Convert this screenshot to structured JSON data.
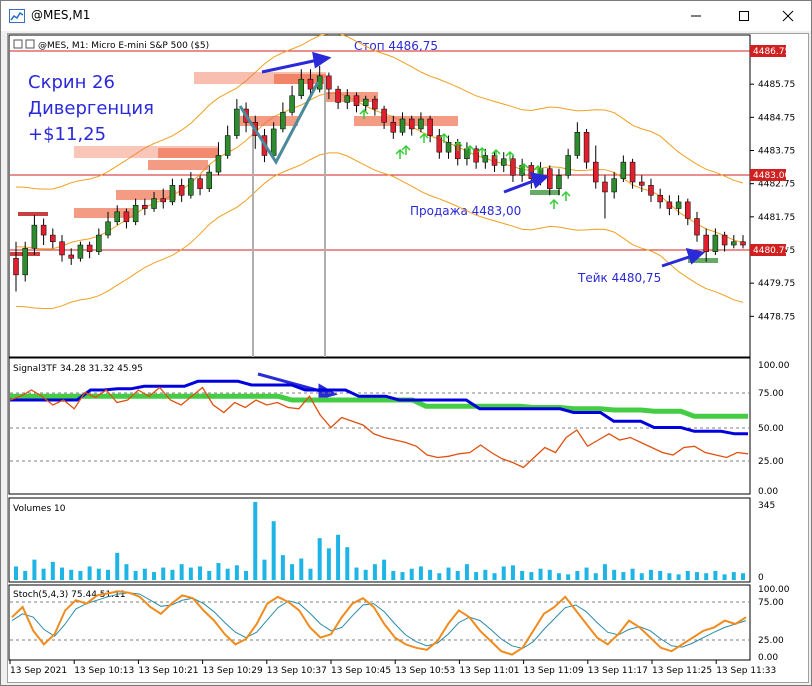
{
  "window": {
    "title": "@MES,M1",
    "minimize_icon": "minimize-icon",
    "maximize_icon": "maximize-icon",
    "close_icon": "close-icon"
  },
  "chart_header": {
    "symbol_label": "@MES, M1:  Micro E-mini S&P 500 ($5)"
  },
  "annotations": {
    "screen_title": "Скрин 26",
    "divergence": "Дивергенция",
    "profit": "+$11,25",
    "stop": "Стоп 4486,75",
    "sell": "Продажа 4483,00",
    "take": "Тейк 4480,75"
  },
  "price_scale": {
    "ticks": [
      "4485.75",
      "4484.75",
      "4483.75",
      "4482.75",
      "4481.75",
      "4480.75",
      "4479.75",
      "4478.75"
    ],
    "stop_tag": "4486.75",
    "sell_tag": "4483.00",
    "take_tag": "4480.75"
  },
  "signal_panel": {
    "label": "Signal3TF 34.28 31.32 45.95",
    "ticks": [
      "100.00",
      "75.00",
      "50.00",
      "25.00",
      "0.00"
    ]
  },
  "volume_panel": {
    "label": "Volumes 10",
    "ticks": [
      "345",
      "0"
    ]
  },
  "stoch_panel": {
    "label": "Stoch(5,4,3) 75.44 51.11",
    "ticks": [
      "100.00",
      "75.00",
      "25.00",
      "0.00"
    ]
  },
  "time_axis": {
    "labels": [
      "13 Sep 2021",
      "13 Sep 10:13",
      "13 Sep 10:21",
      "13 Sep 10:29",
      "13 Sep 10:37",
      "13 Sep 10:45",
      "13 Sep 10:53",
      "13 Sep 11:01",
      "13 Sep 11:09",
      "13 Sep 11:17",
      "13 Sep 11:25",
      "13 Sep 11:33"
    ]
  },
  "colors": {
    "bull": "#2e8b2e",
    "bear": "#e0202e",
    "band": "#f0a020",
    "level": "#d02020",
    "signal_blue": "#0000dd",
    "signal_green": "#44cc44",
    "signal_orange": "#e05010",
    "volume": "#1eb4e6",
    "stoch_orange": "#f08c1e",
    "stoch_teal": "#2a8ca8",
    "annotation": "#2a2ad8",
    "zone": "#f07050",
    "buy_arrow": "#33cc33"
  },
  "chart_data": {
    "type": "candlestick",
    "price_levels": {
      "stop": 4486.75,
      "sell": 4483.0,
      "take": 4480.75
    },
    "price_range": [
      4477.8,
      4486.9
    ],
    "y_ticks": [
      4485.75,
      4484.75,
      4483.75,
      4482.75,
      4481.75,
      4480.75,
      4479.75,
      4478.75
    ],
    "candles": [
      [
        4480.5,
        4480.0,
        4481.0,
        4479.5
      ],
      [
        4480.0,
        4480.8,
        4481.0,
        4479.8
      ],
      [
        4480.8,
        4481.5,
        4481.8,
        4480.6
      ],
      [
        4481.5,
        4481.2,
        4481.7,
        4480.9
      ],
      [
        4481.2,
        4481.0,
        4481.4,
        4480.8
      ],
      [
        4481.0,
        4480.6,
        4481.2,
        4480.4
      ],
      [
        4480.6,
        4480.5,
        4480.8,
        4480.3
      ],
      [
        4480.5,
        4480.9,
        4481.0,
        4480.4
      ],
      [
        4480.9,
        4480.7,
        4481.0,
        4480.5
      ],
      [
        4480.7,
        4481.2,
        4481.4,
        4480.6
      ],
      [
        4481.2,
        4481.6,
        4481.9,
        4481.1
      ],
      [
        4481.6,
        4481.9,
        4482.1,
        4481.5
      ],
      [
        4481.9,
        4481.6,
        4482.0,
        4481.4
      ],
      [
        4481.6,
        4482.1,
        4482.3,
        4481.5
      ],
      [
        4482.1,
        4482.0,
        4482.3,
        4481.8
      ],
      [
        4482.0,
        4482.3,
        4482.5,
        4481.9
      ],
      [
        4482.3,
        4482.2,
        4482.6,
        4482.0
      ],
      [
        4482.2,
        4482.7,
        4482.9,
        4482.1
      ],
      [
        4482.7,
        4482.4,
        4482.9,
        4482.2
      ],
      [
        4482.4,
        4482.9,
        4483.1,
        4482.3
      ],
      [
        4482.9,
        4482.6,
        4483.0,
        4482.4
      ],
      [
        4482.6,
        4483.1,
        4483.3,
        4482.5
      ],
      [
        4483.1,
        4483.6,
        4484.0,
        4483.0
      ],
      [
        4483.6,
        4484.2,
        4484.5,
        4483.5
      ],
      [
        4484.2,
        4485.0,
        4485.3,
        4484.1
      ],
      [
        4485.0,
        4484.6,
        4485.2,
        4484.3
      ],
      [
        4484.6,
        4484.2,
        4484.8,
        4483.8
      ],
      [
        4484.2,
        4483.6,
        4484.4,
        4483.4
      ],
      [
        4483.6,
        4484.4,
        4484.6,
        4483.5
      ],
      [
        4484.4,
        4484.9,
        4485.2,
        4484.3
      ],
      [
        4484.9,
        4485.4,
        4485.7,
        4484.8
      ],
      [
        4485.4,
        4485.9,
        4486.2,
        4485.3
      ],
      [
        4485.9,
        4485.6,
        4486.2,
        4485.4
      ],
      [
        4485.6,
        4486.0,
        4486.3,
        4485.5
      ],
      [
        4486.0,
        4485.6,
        4486.1,
        4485.3
      ],
      [
        4485.6,
        4485.2,
        4485.7,
        4485.0
      ],
      [
        4485.2,
        4485.4,
        4485.6,
        4485.0
      ],
      [
        4485.4,
        4485.1,
        4485.5,
        4484.9
      ],
      [
        4485.1,
        4485.3,
        4485.4,
        4484.9
      ],
      [
        4485.3,
        4485.0,
        4485.4,
        4484.8
      ],
      [
        4485.0,
        4484.6,
        4485.1,
        4484.4
      ],
      [
        4484.6,
        4484.3,
        4484.8,
        4484.1
      ],
      [
        4484.3,
        4484.7,
        4484.9,
        4484.2
      ],
      [
        4484.7,
        4484.4,
        4484.8,
        4484.2
      ],
      [
        4484.4,
        4484.7,
        4484.9,
        4484.3
      ],
      [
        4484.7,
        4484.2,
        4484.8,
        4484.0
      ],
      [
        4484.2,
        4483.7,
        4484.4,
        4483.5
      ],
      [
        4483.7,
        4484.0,
        4484.2,
        4483.5
      ],
      [
        4484.0,
        4483.5,
        4484.1,
        4483.3
      ],
      [
        4483.5,
        4483.8,
        4484.0,
        4483.3
      ],
      [
        4483.8,
        4483.4,
        4483.9,
        4483.2
      ],
      [
        4483.4,
        4483.6,
        4483.8,
        4483.2
      ],
      [
        4483.6,
        4483.3,
        4483.7,
        4483.1
      ],
      [
        4483.3,
        4483.5,
        4483.7,
        4483.1
      ],
      [
        4483.5,
        4483.0,
        4483.6,
        4482.8
      ],
      [
        4483.0,
        4483.3,
        4483.5,
        4482.8
      ],
      [
        4483.3,
        4482.9,
        4483.4,
        4482.6
      ],
      [
        4482.9,
        4483.2,
        4483.4,
        4482.7
      ],
      [
        4483.2,
        4482.6,
        4483.3,
        4482.4
      ],
      [
        4482.6,
        4483.0,
        4483.2,
        4482.4
      ],
      [
        4483.0,
        4483.6,
        4483.8,
        4482.9
      ],
      [
        4483.6,
        4484.3,
        4484.6,
        4483.5
      ],
      [
        4484.3,
        4483.4,
        4484.4,
        4483.2
      ],
      [
        4483.4,
        4482.8,
        4483.9,
        4482.6
      ],
      [
        4482.8,
        4482.5,
        4483.0,
        4481.7
      ],
      [
        4482.5,
        4482.9,
        4483.1,
        4482.3
      ],
      [
        4482.9,
        4483.4,
        4483.6,
        4482.8
      ],
      [
        4483.4,
        4482.8,
        4483.5,
        4482.6
      ],
      [
        4482.8,
        4482.7,
        4483.0,
        4482.5
      ],
      [
        4482.7,
        4482.4,
        4482.9,
        4482.2
      ],
      [
        4482.4,
        4482.2,
        4482.6,
        4482.0
      ],
      [
        4482.2,
        4482.0,
        4482.4,
        4481.8
      ],
      [
        4482.0,
        4482.2,
        4482.4,
        4481.8
      ],
      [
        4482.2,
        4481.7,
        4482.3,
        4481.5
      ],
      [
        4481.7,
        4481.2,
        4481.9,
        4481.0
      ],
      [
        4481.2,
        4480.7,
        4481.4,
        4480.4
      ],
      [
        4480.7,
        4481.2,
        4481.4,
        4480.6
      ],
      [
        4481.2,
        4480.9,
        4481.3,
        4480.7
      ],
      [
        4480.9,
        4481.0,
        4481.2,
        4480.8
      ],
      [
        4481.0,
        4480.9,
        4481.2,
        4480.8
      ]
    ],
    "signal_blue": [
      72,
      72,
      72,
      72,
      72,
      72,
      80,
      80,
      81,
      81,
      83,
      83,
      83,
      83,
      87,
      87,
      87,
      87,
      84,
      84,
      84,
      84,
      80,
      80,
      80,
      80,
      75,
      75,
      75,
      72,
      72,
      72,
      72,
      72,
      72,
      65,
      65,
      65,
      65,
      65,
      65,
      65,
      62,
      62,
      62,
      55,
      55,
      55,
      50,
      50,
      50,
      47,
      47,
      47,
      45,
      45
    ],
    "signal_green": [
      75,
      75,
      75,
      75,
      75,
      75,
      75,
      75,
      75,
      75,
      75,
      75,
      75,
      75,
      75,
      75,
      75,
      75,
      75,
      75,
      75,
      72,
      72,
      72,
      72,
      72,
      72,
      72,
      72,
      72,
      72,
      67,
      67,
      67,
      67,
      67,
      67,
      67,
      67,
      66,
      66,
      66,
      65,
      65,
      65,
      64,
      64,
      64,
      63,
      63,
      63,
      59,
      59,
      59,
      59,
      59
    ],
    "signal_orange": [
      72,
      75,
      80,
      75,
      68,
      72,
      65,
      78,
      74,
      80,
      70,
      72,
      80,
      75,
      82,
      72,
      68,
      75,
      82,
      68,
      62,
      70,
      66,
      72,
      68,
      70,
      66,
      65,
      75,
      60,
      50,
      58,
      55,
      52,
      45,
      42,
      40,
      38,
      35,
      28,
      26,
      27,
      29,
      30,
      36,
      30,
      25,
      22,
      18,
      26,
      34,
      30,
      42,
      48,
      35,
      40,
      45,
      40,
      42,
      38,
      34,
      30,
      28,
      34,
      35,
      30,
      28,
      26,
      30,
      29
    ],
    "volumes": [
      60,
      40,
      90,
      50,
      80,
      55,
      45,
      40,
      60,
      50,
      45,
      120,
      70,
      40,
      50,
      35,
      55,
      45,
      70,
      55,
      60,
      40,
      75,
      50,
      65,
      40,
      345,
      90,
      260,
      110,
      70,
      95,
      50,
      185,
      140,
      200,
      145,
      55,
      45,
      70,
      90,
      40,
      35,
      50,
      60,
      45,
      30,
      55,
      40,
      70,
      35,
      45,
      30,
      60,
      65,
      40,
      35,
      50,
      45,
      30,
      25,
      40,
      55,
      30,
      70,
      45,
      35,
      50,
      30,
      45,
      40,
      30,
      25,
      40,
      35,
      30,
      40,
      25,
      35,
      30
    ],
    "stoch_orange": [
      60,
      75,
      40,
      20,
      35,
      70,
      85,
      80,
      92,
      95,
      98,
      96,
      90,
      75,
      65,
      80,
      92,
      88,
      70,
      55,
      35,
      20,
      28,
      50,
      80,
      90,
      82,
      70,
      45,
      30,
      35,
      60,
      80,
      88,
      75,
      50,
      30,
      20,
      15,
      12,
      25,
      50,
      70,
      60,
      40,
      25,
      10,
      5,
      15,
      40,
      65,
      75,
      90,
      70,
      50,
      30,
      20,
      35,
      55,
      45,
      30,
      15,
      10,
      20,
      30,
      40,
      45,
      55,
      50,
      60
    ],
    "stoch_teal": [
      55,
      65,
      60,
      42,
      32,
      50,
      72,
      80,
      85,
      90,
      94,
      96,
      94,
      85,
      76,
      78,
      85,
      88,
      80,
      68,
      52,
      38,
      30,
      38,
      56,
      74,
      84,
      80,
      66,
      50,
      40,
      45,
      62,
      78,
      80,
      68,
      50,
      34,
      24,
      18,
      22,
      35,
      52,
      60,
      55,
      42,
      28,
      18,
      14,
      24,
      42,
      58,
      74,
      78,
      68,
      52,
      38,
      34,
      42,
      46,
      40,
      28,
      18,
      16,
      22,
      30,
      38,
      45,
      50,
      55
    ]
  }
}
